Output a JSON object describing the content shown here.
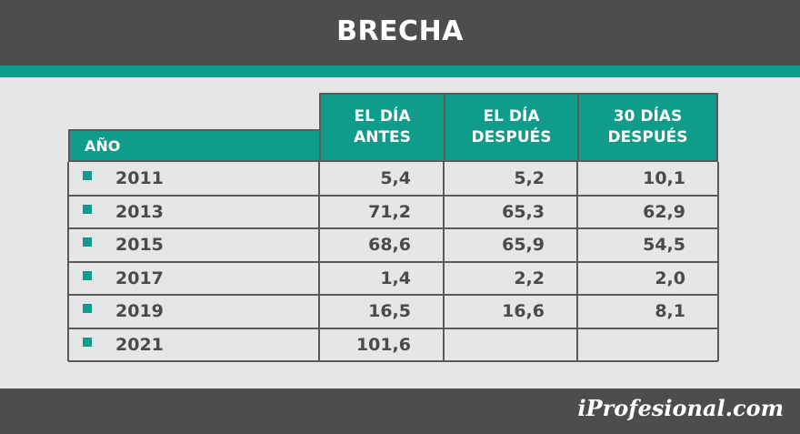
{
  "header": {
    "title": "BRECHA"
  },
  "brand": "iProfesional.com",
  "colors": {
    "header_bg": "#4d4d4d",
    "accent": "#0f9c8a",
    "background": "#e5e6e7"
  },
  "chart_data": {
    "type": "table",
    "title": "BRECHA",
    "columns": [
      "AÑO",
      "EL DÍA ANTES",
      "EL DÍA DESPUÉS",
      "30 DÍAS DESPUÉS"
    ],
    "columns_display": {
      "antes": [
        "EL DÍA",
        "ANTES"
      ],
      "despues": [
        "EL DÍA",
        "DESPUÉS"
      ],
      "dias30": [
        "30 DÍAS",
        "DESPUÉS"
      ]
    },
    "rows": [
      {
        "year": "2011",
        "antes": "5,4",
        "despues": "5,2",
        "dias30": "10,1"
      },
      {
        "year": "2013",
        "antes": "71,2",
        "despues": "65,3",
        "dias30": "62,9"
      },
      {
        "year": "2015",
        "antes": "68,6",
        "despues": "65,9",
        "dias30": "54,5"
      },
      {
        "year": "2017",
        "antes": "1,4",
        "despues": "2,2",
        "dias30": "2,0"
      },
      {
        "year": "2019",
        "antes": "16,5",
        "despues": "16,6",
        "dias30": "8,1"
      },
      {
        "year": "2021",
        "antes": "101,6",
        "despues": "",
        "dias30": ""
      }
    ]
  }
}
